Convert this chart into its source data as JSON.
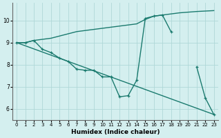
{
  "xlabel": "Humidex (Indice chaleur)",
  "bg_color": "#d4efef",
  "grid_color": "#afd8d8",
  "line_color": "#1a7a6e",
  "xlim": [
    -0.5,
    23.5
  ],
  "ylim": [
    5.5,
    10.8
  ],
  "xticks": [
    0,
    1,
    2,
    3,
    4,
    5,
    6,
    7,
    8,
    9,
    10,
    11,
    12,
    13,
    14,
    15,
    16,
    17,
    18,
    19,
    20,
    21,
    22,
    23
  ],
  "yticks": [
    6,
    7,
    8,
    9,
    10
  ],
  "series": [
    {
      "x": [
        0,
        1,
        2,
        3,
        4,
        5,
        6,
        7,
        8,
        9,
        10,
        11,
        12,
        13,
        14,
        15,
        16,
        17,
        18,
        19,
        20,
        21,
        22,
        23
      ],
      "y": [
        9.0,
        9.0,
        9.1,
        9.15,
        9.2,
        9.3,
        9.4,
        9.5,
        9.55,
        9.6,
        9.65,
        9.7,
        9.75,
        9.8,
        9.85,
        10.05,
        10.2,
        10.25,
        10.3,
        10.35,
        10.38,
        10.41,
        10.43,
        10.45
      ],
      "has_markers": false,
      "linewidth": 1.0
    },
    {
      "x": [
        0,
        23
      ],
      "y": [
        9.0,
        5.75
      ],
      "has_markers": false,
      "linewidth": 1.0
    },
    {
      "x": [
        0,
        1,
        2,
        3,
        4,
        5,
        6,
        7,
        8,
        9,
        10,
        11,
        12,
        13,
        14,
        15,
        16,
        17,
        18,
        19,
        20,
        21,
        22,
        23
      ],
      "y": [
        9.0,
        9.0,
        9.1,
        8.7,
        8.55,
        8.3,
        8.15,
        7.8,
        7.75,
        7.75,
        7.45,
        7.45,
        6.55,
        6.6,
        7.3,
        10.1,
        10.2,
        10.25,
        9.5,
        null,
        null,
        7.9,
        6.5,
        5.75
      ],
      "has_markers": true,
      "linewidth": 1.0
    }
  ]
}
